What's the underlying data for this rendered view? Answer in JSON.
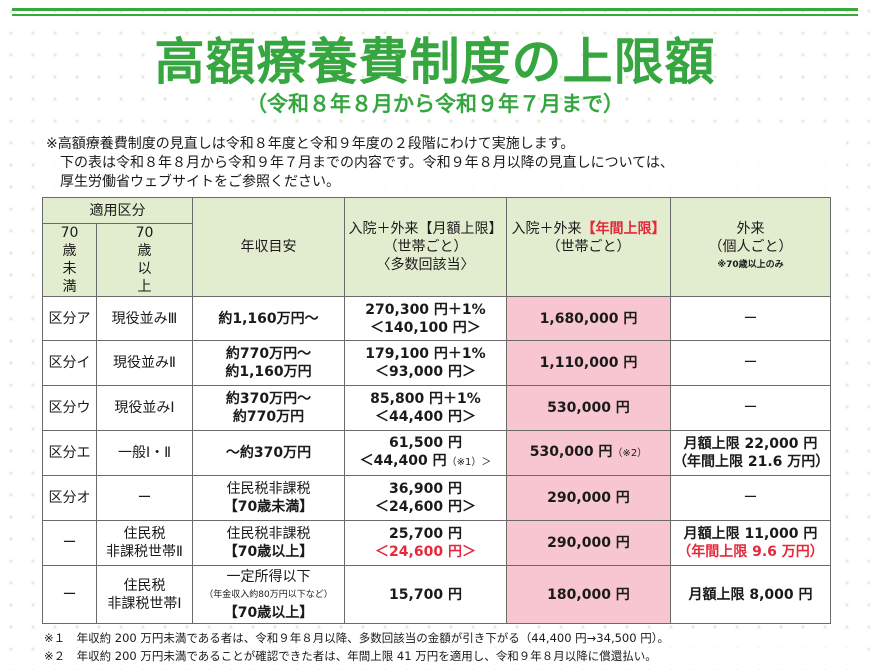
{
  "title": "高額療養費制度の上限額",
  "subtitle": "（令和８年８月から令和９年７月まで）",
  "notes": [
    "※高額療養費制度の見直しは令和８年度と令和９年度の２段階にわけて実施します。",
    "下の表は令和８年８月から令和９年７月までの内容です。令和９年８月以降の見直しについては、",
    "厚生労働省ウェブサイトをご参照ください。"
  ],
  "header": {
    "category": "適用区分",
    "under70": [
      "70",
      "歳",
      "未",
      "満"
    ],
    "over70": [
      "70",
      "歳",
      "以",
      "上"
    ],
    "income": "年収目安",
    "monthly": {
      "line1": "入院＋外来【月額上限】",
      "line2": "（世帯ごと）",
      "line3": "〈多数回該当〉"
    },
    "annual": {
      "line1_prefix": "入院＋外来",
      "line1_red": "【年間上限】",
      "line2": "（世帯ごと）"
    },
    "outpatient": {
      "line1": "外来",
      "line2": "（個人ごと）",
      "note": "※70歳以上のみ"
    }
  },
  "rows": [
    {
      "under70": "区分ア",
      "over70": "現役並みⅢ",
      "income": [
        "約1,160万円〜"
      ],
      "monthly": [
        "270,300 円＋1%",
        "＜140,100 円＞"
      ],
      "annual": "1,680,000 円",
      "annual_note": "",
      "outpatient": [
        "ー"
      ]
    },
    {
      "under70": "区分イ",
      "over70": "現役並みⅡ",
      "income": [
        "約770万円〜",
        "約1,160万円"
      ],
      "monthly": [
        "179,100 円＋1%",
        "＜93,000 円＞"
      ],
      "annual": "1,110,000 円",
      "annual_note": "",
      "outpatient": [
        "ー"
      ]
    },
    {
      "under70": "区分ウ",
      "over70": "現役並みⅠ",
      "income": [
        "約370万円〜",
        "約770万円"
      ],
      "monthly": [
        "85,800 円＋1%",
        "＜44,400 円＞"
      ],
      "annual": "530,000 円",
      "annual_note": "",
      "outpatient": [
        "ー"
      ]
    },
    {
      "under70": "区分エ",
      "over70": "一般Ⅰ・Ⅱ",
      "income": [
        "〜約370万円"
      ],
      "monthly": [
        "61,500 円",
        "＜44,400 円",
        "（※1）＞"
      ],
      "annual": "530,000 円",
      "annual_note": "（※2）",
      "outpatient": [
        "月額上限 22,000 円",
        "（年間上限 21.6 万円）"
      ]
    },
    {
      "under70": "区分オ",
      "over70": "ー",
      "income": [
        "住民税非課税",
        "【70歳未満】"
      ],
      "monthly": [
        "36,900 円",
        "＜24,600 円＞"
      ],
      "annual": "290,000 円",
      "annual_note": "",
      "outpatient": [
        "ー"
      ]
    },
    {
      "under70": "ー",
      "over70": "住民税\n非課税世帯Ⅱ",
      "income": [
        "住民税非課税",
        "【70歳以上】"
      ],
      "monthly": [
        "25,700 円",
        "＜24,600 円＞"
      ],
      "annual": "290,000 円",
      "annual_note": "",
      "outpatient": [
        "月額上限 11,000 円",
        "（年間上限 9.6 万円）"
      ]
    },
    {
      "under70": "ー",
      "over70": "住民税\n非課税世帯Ⅰ",
      "income": [
        "一定所得以下",
        "（年金収入約80万円以下など）",
        "【70歳以上】"
      ],
      "monthly": [
        "15,700 円"
      ],
      "annual": "180,000 円",
      "annual_note": "",
      "outpatient": [
        "月額上限 8,000 円"
      ]
    }
  ],
  "footnotes": [
    "※１　年収約 200 万円未満である者は、令和９年８月以降、多数回該当の金額が引き下がる（44,400 円→34,500 円）。",
    "※２　年収約 200 万円未満であることが確認できた者は、年間上限 41 万円を適用し、令和９年８月以降に償還払い。"
  ],
  "colors": {
    "accent_green": "#36a640",
    "header_bg": "#e2eccf",
    "annual_bg": "#f8c6d0",
    "red_text": "#e5293c"
  }
}
